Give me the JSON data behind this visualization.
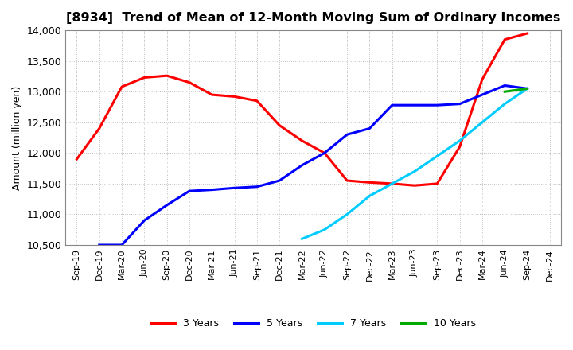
{
  "title": "[8934]  Trend of Mean of 12-Month Moving Sum of Ordinary Incomes",
  "ylabel": "Amount (million yen)",
  "ylim": [
    10500,
    14000
  ],
  "yticks": [
    10500,
    11000,
    11500,
    12000,
    12500,
    13000,
    13500,
    14000
  ],
  "background_color": "#ffffff",
  "grid_color": "#aaaaaa",
  "series": {
    "3yr": {
      "color": "#ff0000",
      "label": "3 Years",
      "x": [
        "Sep-19",
        "Dec-19",
        "Mar-20",
        "Jun-20",
        "Sep-20",
        "Dec-20",
        "Mar-21",
        "Jun-21",
        "Sep-21",
        "Dec-21",
        "Mar-22",
        "Jun-22",
        "Sep-22",
        "Dec-22",
        "Mar-23",
        "Jun-23",
        "Sep-23",
        "Dec-23",
        "Mar-24",
        "Jun-24",
        "Sep-24"
      ],
      "y": [
        11900,
        12400,
        13080,
        13230,
        13260,
        13150,
        12950,
        12920,
        12850,
        12450,
        12200,
        12000,
        11550,
        11520,
        11500,
        11470,
        11500,
        12100,
        13200,
        13850,
        13950
      ]
    },
    "5yr": {
      "color": "#0000ff",
      "label": "5 Years",
      "x": [
        "Dec-19",
        "Mar-20",
        "Jun-20",
        "Sep-20",
        "Dec-20",
        "Mar-21",
        "Jun-21",
        "Sep-21",
        "Dec-21",
        "Mar-22",
        "Jun-22",
        "Sep-22",
        "Dec-22",
        "Mar-23",
        "Jun-23",
        "Sep-23",
        "Dec-23",
        "Mar-24",
        "Jun-24",
        "Sep-24"
      ],
      "y": [
        10500,
        10500,
        10900,
        11150,
        11380,
        11400,
        11430,
        11450,
        11550,
        11800,
        12000,
        12300,
        12400,
        12780,
        12780,
        12780,
        12800,
        12950,
        13100,
        13050
      ]
    },
    "7yr": {
      "color": "#00ccff",
      "label": "7 Years",
      "x": [
        "Mar-22",
        "Jun-22",
        "Sep-22",
        "Dec-22",
        "Mar-23",
        "Jun-23",
        "Sep-23",
        "Dec-23",
        "Mar-24",
        "Jun-24",
        "Sep-24"
      ],
      "y": [
        10600,
        10750,
        11000,
        11300,
        11500,
        11700,
        11950,
        12200,
        12500,
        12800,
        13050
      ]
    },
    "10yr": {
      "color": "#00aa00",
      "label": "10 Years",
      "x": [
        "Jun-24",
        "Sep-24"
      ],
      "y": [
        13000,
        13050
      ]
    }
  },
  "x_labels": [
    "Sep-19",
    "Dec-19",
    "Mar-20",
    "Jun-20",
    "Sep-20",
    "Dec-20",
    "Mar-21",
    "Jun-21",
    "Sep-21",
    "Dec-21",
    "Mar-22",
    "Jun-22",
    "Sep-22",
    "Dec-22",
    "Mar-23",
    "Jun-23",
    "Sep-23",
    "Dec-23",
    "Mar-24",
    "Jun-24",
    "Sep-24",
    "Dec-24"
  ],
  "legend_ncol": 4
}
